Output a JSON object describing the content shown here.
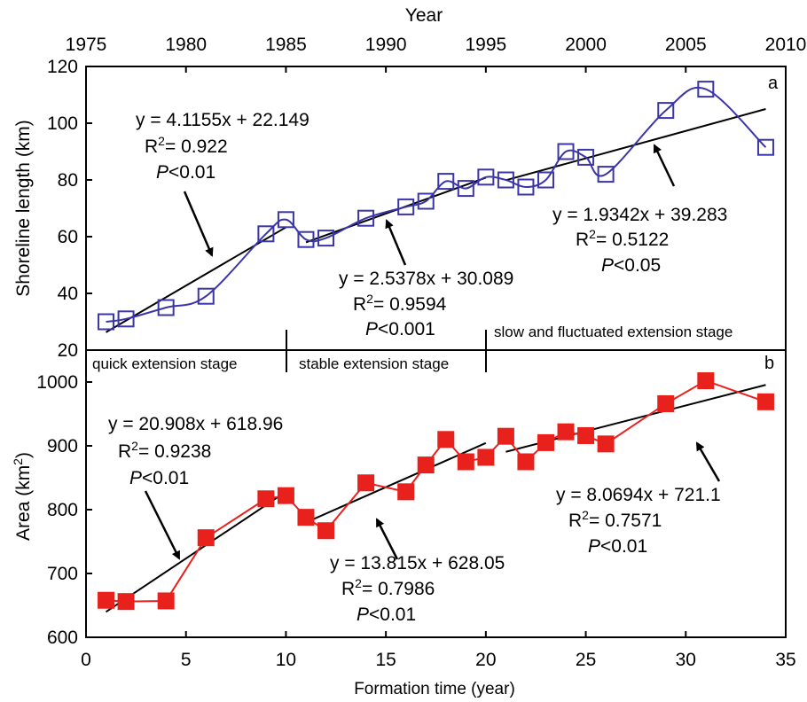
{
  "chart_data": [
    {
      "panel": "a",
      "type": "scatter",
      "xlabel_top": "Year",
      "ylabel": "Shoreline length (km)",
      "xlim_top": [
        1975,
        2010
      ],
      "top_ticks": [
        "1975",
        "1980",
        "1985",
        "1990",
        "1995",
        "2000",
        "2005",
        "2010"
      ],
      "xlim": [
        0,
        35
      ],
      "ylim": [
        20,
        120
      ],
      "yticks": [
        "20",
        "40",
        "60",
        "80",
        "100",
        "120"
      ],
      "grid": false,
      "marker": "open-square",
      "series_color": "#3a35a8",
      "x": [
        1,
        2,
        4,
        6,
        9,
        10,
        11,
        12,
        14,
        16,
        17,
        18,
        19,
        20,
        21,
        22,
        23,
        24,
        25,
        26,
        29,
        31,
        34
      ],
      "y": [
        30,
        31,
        35,
        39,
        61,
        66,
        59,
        59.5,
        66.5,
        70.5,
        72.5,
        79.5,
        77,
        81,
        80,
        77.5,
        80,
        90,
        88,
        82,
        104.5,
        112,
        91.5
      ],
      "trendlines": [
        {
          "x": [
            1,
            10
          ],
          "y": [
            26.3,
            63.3
          ]
        },
        {
          "x": [
            11,
            20
          ],
          "y": [
            58.0,
            80.8
          ]
        },
        {
          "x": [
            21,
            34
          ],
          "y": [
            79.9,
            105.0
          ]
        }
      ],
      "annotations": [
        {
          "lines": [
            "y = 4.1155x + 22.149",
            "R2 = 0.922",
            "P<0.01"
          ]
        },
        {
          "lines": [
            "y = 2.5378x + 30.089",
            "R2 = 0.9594",
            "P<0.001"
          ]
        },
        {
          "lines": [
            "y = 1.9342x + 39.283",
            "R2 = 0.5122",
            "P<0.05"
          ]
        }
      ],
      "stages": [
        "quick extension stage",
        "stable extension stage",
        "slow and fluctuated extension stage"
      ]
    },
    {
      "panel": "b",
      "type": "scatter",
      "xlabel": "Formation time (year)",
      "ylabel": "Area (km2)",
      "xlim": [
        0,
        35
      ],
      "xticks": [
        "0",
        "5",
        "10",
        "15",
        "20",
        "25",
        "30",
        "35"
      ],
      "ylim": [
        600,
        1050
      ],
      "yticks": [
        "600",
        "700",
        "800",
        "900",
        "1000"
      ],
      "grid": false,
      "marker": "filled-square",
      "series_color": "#e8211c",
      "x": [
        1,
        2,
        4,
        6,
        9,
        10,
        11,
        12,
        14,
        16,
        17,
        18,
        19,
        20,
        21,
        22,
        23,
        24,
        25,
        26,
        29,
        31,
        34
      ],
      "y": [
        658,
        656,
        657,
        756,
        817,
        822,
        788,
        767,
        842,
        828,
        870,
        910,
        875,
        882,
        915,
        875,
        905,
        922,
        916,
        903,
        966,
        1002,
        969
      ],
      "trendlines": [
        {
          "x": [
            1,
            10
          ],
          "y": [
            639.9,
            828.0
          ]
        },
        {
          "x": [
            11,
            20
          ],
          "y": [
            780.0,
            904.4
          ]
        },
        {
          "x": [
            21,
            34
          ],
          "y": [
            890.6,
            995.5
          ]
        }
      ],
      "annotations": [
        {
          "lines": [
            "y = 20.908x + 618.96",
            "R2 = 0.9238",
            "P<0.01"
          ]
        },
        {
          "lines": [
            "y = 13.815x + 628.05",
            "R2 = 0.7986",
            "P<0.01"
          ]
        },
        {
          "lines": [
            "y = 8.0694x + 721.1",
            "R2 = 0.7571",
            "P<0.01"
          ]
        }
      ]
    }
  ],
  "text": {
    "panel_a_letter": "a",
    "panel_b_letter": "b",
    "year_title": "Year",
    "xlabel": "Formation time (year)",
    "ylabel_a": "Shoreline length (km)",
    "ylabel_b_main": "Area (km",
    "ylabel_b_sup": "2",
    "ylabel_b_end": ")",
    "stage1": "quick extension stage",
    "stage2": "stable extension stage",
    "stage3": "slow and fluctuated extension stage",
    "eq_a1": "y = 4.1155x + 22.149",
    "r2_a1": "= 0.922",
    "p_a1": "<0.01",
    "eq_a2": "y = 2.5378x + 30.089",
    "r2_a2": "= 0.9594",
    "p_a2": "<0.001",
    "eq_a3": "y = 1.9342x + 39.283",
    "r2_a3": "= 0.5122",
    "p_a3": "<0.05",
    "eq_b1": "y = 20.908x + 618.96",
    "r2_b1": "= 0.9238",
    "p_b1": "<0.01",
    "eq_b2": "y = 13.815x + 628.05",
    "r2_b2": "= 0.7986",
    "p_b2": "<0.01",
    "eq_b3": "y = 8.0694x + 721.1",
    "r2_b3": "= 0.7571",
    "p_b3": "<0.01",
    "r_letter": "R",
    "sup_two": "2",
    "p_letter": "P"
  }
}
